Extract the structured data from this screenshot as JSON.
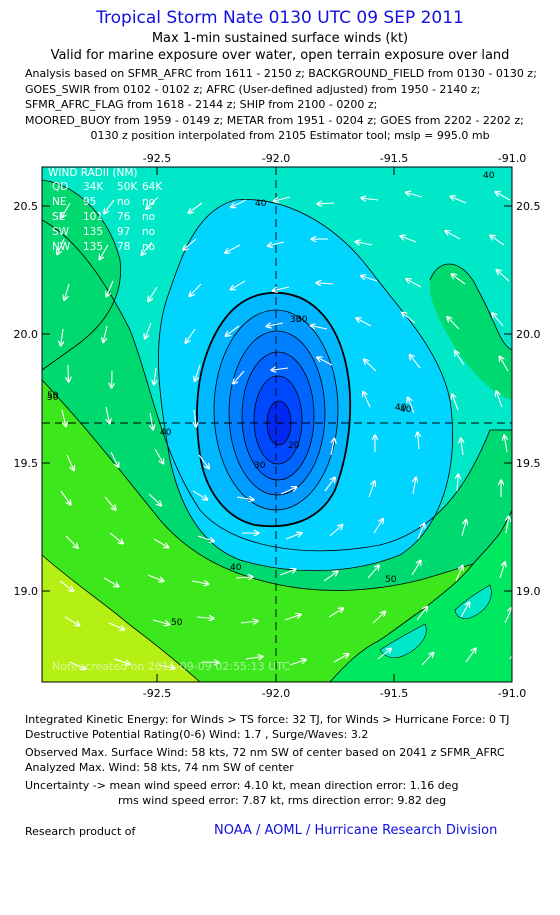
{
  "header": {
    "title": "Tropical Storm Nate 0130 UTC 09 SEP 2011",
    "subtitle1": "Max 1-min sustained surface winds (kt)",
    "subtitle2": "Valid for marine exposure over water, open terrain exposure over land"
  },
  "analysis_lines": [
    "Analysis based on SFMR_AFRC from 1611 - 2150 z; BACKGROUND_FIELD from 0130 - 0130 z;",
    "GOES_SWIR from 0102 - 0102 z; AFRC (User-defined adjusted) from 1950 - 2140 z;",
    "SFMR_AFRC_FLAG from 1618 - 2144 z; SHIP from 2100 - 0200 z;",
    "MOORED_BUOY from 1959 - 0149 z; METAR from 1951 - 0204 z; GOES from 2202 - 2202 z;",
    "0130 z position interpolated from 2105 Estimator tool; mslp = 995.0 mb"
  ],
  "map": {
    "x_ticks": [
      "-92.5",
      "-92.0",
      "-91.5",
      "-91.0"
    ],
    "y_ticks": [
      "20.5",
      "20.0",
      "19.5",
      "19.0"
    ],
    "center_lon": -92.0,
    "center_lat": 19.65,
    "contour_labels": [
      "40",
      "30",
      "20",
      "30",
      "40",
      "50",
      "40",
      "50",
      "40",
      "50",
      "30",
      "40",
      "50",
      "40"
    ],
    "watermark": "Note:  created on 2011-09-09 02:55:13 UTC",
    "colors": {
      "background": "#00e8c8",
      "light_blue": "#00d4ff",
      "mid_blue": "#009cff",
      "dark_blue": "#0040ff",
      "green": "#00d870",
      "bright_green": "#3ce81c",
      "yellow_green": "#b4f014",
      "land": "#00e860"
    }
  },
  "wind_radii": {
    "title": "WIND RADII (NM)",
    "header": [
      "QD",
      "34K",
      "50K",
      "64K"
    ],
    "rows": [
      [
        "NE",
        "95",
        "no",
        "no"
      ],
      [
        "SE",
        "101",
        "76",
        "no"
      ],
      [
        "SW",
        "135",
        "97",
        "no"
      ],
      [
        "NW",
        "135",
        "78",
        "no"
      ]
    ]
  },
  "info": {
    "line1": "Integrated Kinetic Energy:  for Winds > TS force: 32 TJ,  for Winds > Hurricane Force: 0 TJ",
    "line2": "Destructive Potential Rating(0-6)   Wind: 1.7 , Surge/Waves: 3.2",
    "line3": "Observed Max. Surface Wind: 58 kts, 72 nm SW of center based on 2041 z SFMR_AFRC",
    "line4": "Analyzed Max. Wind: 58 kts, 74 nm SW of center",
    "line5": "Uncertainty -> mean wind speed error: 4.10 kt,   mean direction error: 1.16 deg",
    "line6": "rms wind speed error: 7.87 kt,   rms direction error: 9.82 deg"
  },
  "footer": {
    "left": "Research product of",
    "right": "NOAA / AOML / Hurricane Research Division"
  }
}
